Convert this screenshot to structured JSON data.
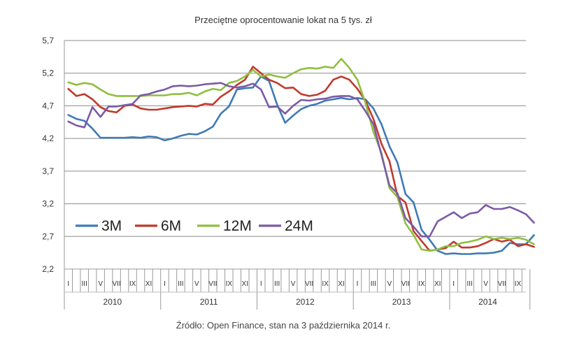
{
  "chart_data": {
    "type": "line",
    "title": "Przeciętne oprocentowanie lokat na 5 tys. zł",
    "source": "Źródło: Open Finance, stan na 3 października 2014 r.",
    "ylim": [
      2.2,
      5.7
    ],
    "yticks": [
      "2,2",
      "2,7",
      "3,2",
      "3,7",
      "4,2",
      "4,7",
      "5,2",
      "5,7"
    ],
    "month_labels": [
      "I",
      "III",
      "V",
      "VII",
      "IX",
      "XI",
      "I",
      "III",
      "V",
      "VII",
      "IX",
      "XI",
      "I",
      "III",
      "V",
      "VII",
      "IX",
      "XI",
      "I",
      "III",
      "V",
      "VII",
      "IX",
      "XI",
      "I",
      "III",
      "V",
      "VII",
      "IX"
    ],
    "years": [
      "2010",
      "2011",
      "2012",
      "2013",
      "2014"
    ],
    "n_months": 58,
    "series": [
      {
        "name": "3M",
        "color": "#3f7ab5",
        "values": [
          4.56,
          4.5,
          4.47,
          4.35,
          4.21,
          4.21,
          4.21,
          4.21,
          4.22,
          4.21,
          4.23,
          4.22,
          4.17,
          4.2,
          4.24,
          4.27,
          4.26,
          4.31,
          4.38,
          4.58,
          4.69,
          4.95,
          4.97,
          4.98,
          5.15,
          5.08,
          4.72,
          4.44,
          4.55,
          4.65,
          4.7,
          4.73,
          4.78,
          4.8,
          4.82,
          4.8,
          4.82,
          4.8,
          4.66,
          4.42,
          4.08,
          3.83,
          3.35,
          3.22,
          2.8,
          2.65,
          2.48,
          2.43,
          2.44,
          2.43,
          2.43,
          2.44,
          2.44,
          2.45,
          2.48,
          2.6,
          2.58,
          2.58,
          2.72
        ]
      },
      {
        "name": "6M",
        "color": "#c0392b",
        "values": [
          4.96,
          4.85,
          4.88,
          4.8,
          4.68,
          4.62,
          4.6,
          4.7,
          4.72,
          4.66,
          4.64,
          4.64,
          4.66,
          4.68,
          4.69,
          4.7,
          4.69,
          4.73,
          4.72,
          4.84,
          4.92,
          5.02,
          5.1,
          5.3,
          5.2,
          5.1,
          5.05,
          4.97,
          4.98,
          4.88,
          4.85,
          4.87,
          4.93,
          5.1,
          5.15,
          5.1,
          4.96,
          4.78,
          4.5,
          4.12,
          3.85,
          3.32,
          3.22,
          2.78,
          2.63,
          2.48,
          2.5,
          2.52,
          2.62,
          2.53,
          2.53,
          2.55,
          2.6,
          2.66,
          2.62,
          2.65,
          2.55,
          2.58,
          2.54
        ]
      },
      {
        "name": "12M",
        "color": "#8fbf3f",
        "values": [
          5.06,
          5.02,
          5.05,
          5.03,
          4.95,
          4.88,
          4.85,
          4.85,
          4.85,
          4.85,
          4.86,
          4.86,
          4.86,
          4.88,
          4.88,
          4.9,
          4.86,
          4.92,
          4.96,
          4.94,
          5.05,
          5.08,
          5.15,
          5.25,
          5.15,
          5.18,
          5.15,
          5.13,
          5.2,
          5.26,
          5.28,
          5.27,
          5.3,
          5.28,
          5.42,
          5.28,
          5.1,
          4.75,
          4.3,
          3.98,
          3.44,
          3.3,
          2.9,
          2.72,
          2.5,
          2.48,
          2.5,
          2.55,
          2.55,
          2.6,
          2.62,
          2.65,
          2.7,
          2.66,
          2.68,
          2.66,
          2.68,
          2.65,
          2.58
        ]
      },
      {
        "name": "24M",
        "color": "#7b5aa6",
        "values": [
          4.46,
          4.4,
          4.37,
          4.68,
          4.53,
          4.69,
          4.69,
          4.71,
          4.73,
          4.86,
          4.88,
          4.92,
          4.95,
          5.0,
          5.01,
          5.0,
          5.01,
          5.03,
          5.04,
          5.05,
          5.0,
          4.98,
          5.0,
          5.04,
          4.95,
          4.68,
          4.69,
          4.58,
          4.7,
          4.79,
          4.78,
          4.8,
          4.81,
          4.84,
          4.85,
          4.85,
          4.8,
          4.62,
          4.42,
          3.95,
          3.48,
          3.36,
          2.98,
          2.85,
          2.7,
          2.7,
          2.93,
          3.0,
          3.07,
          2.98,
          3.05,
          3.07,
          3.18,
          3.12,
          3.12,
          3.15,
          3.1,
          3.04,
          2.91
        ]
      }
    ]
  }
}
